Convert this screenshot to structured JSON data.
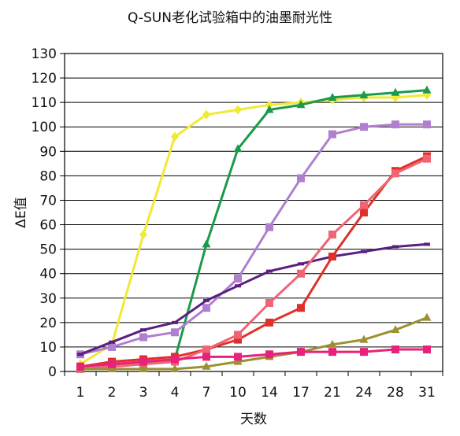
{
  "chart_data": {
    "type": "line",
    "title": "Q-SUN老化试验箱中的油墨耐光性",
    "xlabel": "天数",
    "ylabel": "ΔE值",
    "categories": [
      "1",
      "2",
      "3",
      "4",
      "7",
      "10",
      "14",
      "17",
      "21",
      "24",
      "28",
      "31"
    ],
    "ylim": [
      0,
      130
    ],
    "yticks": [
      0,
      10,
      20,
      30,
      40,
      50,
      60,
      70,
      80,
      90,
      100,
      110,
      120,
      130
    ],
    "grid": true,
    "legend": "none",
    "series": [
      {
        "color": "#f2e935",
        "marker": "diamond",
        "values": [
          3,
          11,
          56,
          96,
          105,
          107,
          109,
          110,
          111,
          112,
          112,
          113
        ]
      },
      {
        "color": "#1a9a4a",
        "marker": "triangle",
        "values": [
          1,
          2,
          3,
          5,
          52,
          91,
          107,
          109,
          112,
          113,
          114,
          115
        ]
      },
      {
        "color": "#b07fcf",
        "marker": "square",
        "values": [
          7,
          10,
          14,
          16,
          26,
          38,
          59,
          79,
          97,
          100,
          101,
          101
        ]
      },
      {
        "color": "#5a1f80",
        "marker": "dash",
        "values": [
          7,
          12,
          17,
          20,
          29,
          35,
          41,
          44,
          47,
          49,
          51,
          52
        ]
      },
      {
        "color": "#e0302a",
        "marker": "square",
        "values": [
          2,
          4,
          5,
          6,
          9,
          13,
          20,
          26,
          47,
          65,
          82,
          88
        ]
      },
      {
        "color": "#f06474",
        "marker": "square",
        "values": [
          1,
          2,
          3,
          4,
          9,
          15,
          28,
          40,
          56,
          68,
          81,
          87
        ]
      },
      {
        "color": "#9b9130",
        "marker": "triangle",
        "values": [
          1,
          1,
          1,
          1,
          2,
          4,
          6,
          8,
          11,
          13,
          17,
          22
        ]
      },
      {
        "color": "#e8217a",
        "marker": "square",
        "values": [
          2,
          3,
          4,
          5,
          6,
          6,
          7,
          8,
          8,
          8,
          9,
          9
        ]
      }
    ]
  }
}
